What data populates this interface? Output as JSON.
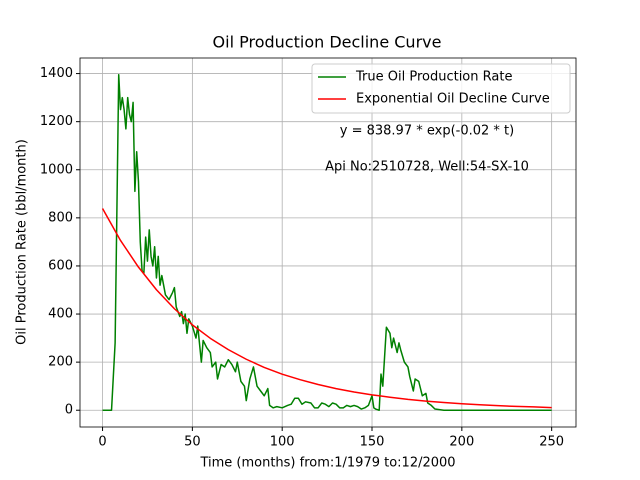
{
  "chart_data": {
    "type": "line",
    "title": "Oil Production Decline Curve",
    "xlabel": "Time (months) from:1/1979 to:12/2000",
    "ylabel": "Oil Production Rate (bbl/month)",
    "annotations": [
      "y = 838.97 * exp(-0.02 * t)",
      "Api No:2510728, Well:54-SX-10"
    ],
    "xlim": [
      -12.55,
      263.55
    ],
    "ylim": [
      -69.75,
      1464.75
    ],
    "xticks": [
      0,
      50,
      100,
      150,
      200,
      250
    ],
    "yticks": [
      0,
      200,
      400,
      600,
      800,
      1000,
      1200,
      1400
    ],
    "grid": true,
    "legend": "upper right",
    "series": [
      {
        "name": "True Oil Production Rate",
        "color": "#008000",
        "x": [
          0,
          5,
          7,
          9,
          10,
          11,
          12,
          13,
          14,
          15,
          16,
          17,
          18,
          19,
          20,
          21,
          22,
          23,
          24,
          25,
          26,
          27,
          28,
          29,
          30,
          31,
          32,
          33,
          35,
          37,
          39,
          40,
          41,
          43,
          44,
          45,
          46,
          47,
          48,
          50,
          52,
          53,
          55,
          56,
          58,
          60,
          61,
          63,
          64,
          66,
          68,
          70,
          72,
          74,
          75,
          77,
          79,
          80,
          82,
          84,
          86,
          88,
          90,
          92,
          93,
          95,
          97,
          100,
          103,
          105,
          107,
          109,
          111,
          113,
          116,
          118,
          120,
          122,
          124,
          126,
          128,
          130,
          132,
          134,
          136,
          138,
          140,
          142,
          144,
          146,
          148,
          150,
          151,
          152,
          154,
          155,
          156,
          158,
          160,
          161,
          162,
          164,
          165,
          166,
          168,
          170,
          171,
          173,
          174,
          176,
          178,
          180,
          181,
          183,
          185,
          190,
          250
        ],
        "values": [
          0,
          0,
          280,
          1395,
          1250,
          1300,
          1250,
          1170,
          1300,
          1230,
          1200,
          1280,
          910,
          1075,
          950,
          700,
          580,
          570,
          720,
          620,
          750,
          640,
          600,
          680,
          550,
          640,
          520,
          560,
          480,
          460,
          490,
          510,
          430,
          390,
          410,
          360,
          400,
          320,
          380,
          350,
          300,
          350,
          200,
          290,
          260,
          240,
          180,
          200,
          130,
          190,
          180,
          210,
          190,
          160,
          200,
          120,
          100,
          40,
          130,
          180,
          100,
          80,
          60,
          90,
          20,
          10,
          15,
          10,
          20,
          25,
          50,
          50,
          25,
          35,
          30,
          10,
          10,
          30,
          25,
          15,
          30,
          25,
          10,
          10,
          20,
          15,
          20,
          15,
          5,
          10,
          20,
          60,
          10,
          5,
          0,
          150,
          100,
          345,
          320,
          260,
          300,
          240,
          280,
          250,
          200,
          180,
          140,
          80,
          130,
          120,
          60,
          70,
          30,
          20,
          5,
          0,
          0
        ]
      },
      {
        "name": "Exponential Oil Decline Curve",
        "color": "#ff0000",
        "x": [
          0,
          10,
          20,
          30,
          40,
          50,
          60,
          70,
          80,
          90,
          100,
          110,
          120,
          130,
          140,
          150,
          160,
          170,
          180,
          190,
          200,
          210,
          220,
          230,
          240,
          250
        ],
        "values": [
          839,
          706,
          595,
          501,
          422,
          355,
          299,
          252,
          212,
          178,
          150,
          127,
          107,
          90,
          76,
          64,
          54,
          45,
          38,
          32,
          27,
          23,
          19,
          16,
          14,
          11
        ]
      }
    ]
  }
}
